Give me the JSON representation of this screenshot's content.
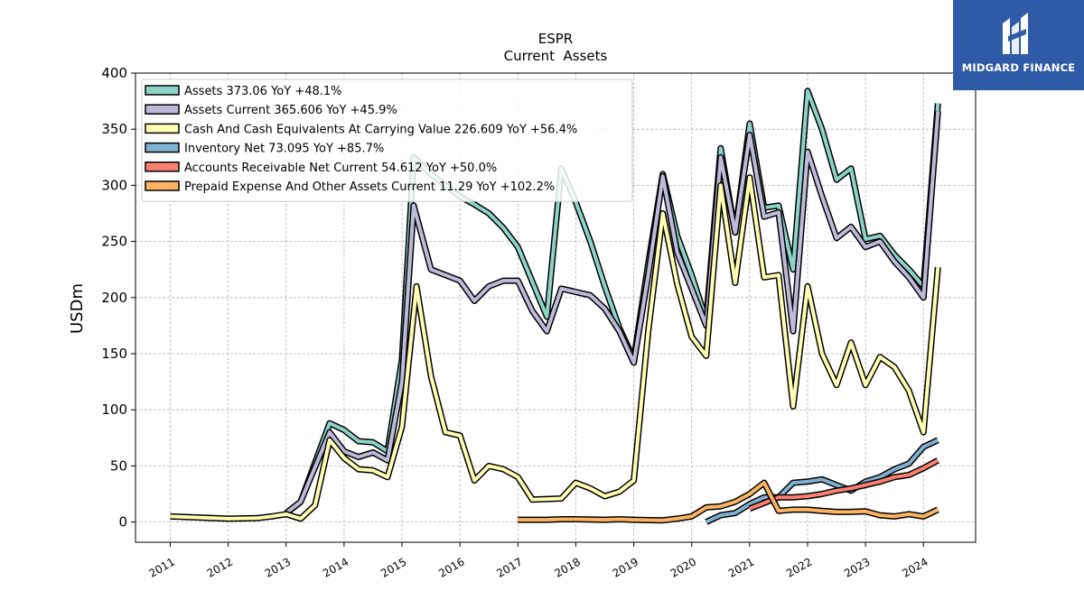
{
  "brand": {
    "name": "MIDGARD FINANCE",
    "bg_color": "#2f5aa8"
  },
  "chart_data": {
    "type": "line",
    "title": "ESPR",
    "subtitle": "Current  Assets",
    "ylabel": "USDm",
    "xlabel": "",
    "ylim": [
      -18,
      400
    ],
    "xlim": [
      2010.4,
      2024.9
    ],
    "yticks": [
      0,
      50,
      100,
      150,
      200,
      250,
      300,
      350,
      400
    ],
    "xticks": [
      "2011",
      "2012",
      "2013",
      "2014",
      "2015",
      "2016",
      "2017",
      "2018",
      "2019",
      "2020",
      "2021",
      "2022",
      "2023",
      "2024"
    ],
    "grid": true,
    "legend_position": "top-left",
    "series": [
      {
        "name": "Assets  373.06 YoY +48.1%",
        "color": "#8dd3c7",
        "points": [
          [
            2013.0,
            8
          ],
          [
            2013.25,
            18
          ],
          [
            2013.75,
            88
          ],
          [
            2014.0,
            82
          ],
          [
            2014.25,
            72
          ],
          [
            2014.5,
            71
          ],
          [
            2014.75,
            63
          ],
          [
            2015.0,
            145
          ],
          [
            2015.2,
            325
          ],
          [
            2015.5,
            310
          ],
          [
            2015.75,
            300
          ],
          [
            2016.0,
            290
          ],
          [
            2016.25,
            283
          ],
          [
            2016.5,
            275
          ],
          [
            2016.75,
            262
          ],
          [
            2017.0,
            245
          ],
          [
            2017.5,
            183
          ],
          [
            2017.75,
            315
          ],
          [
            2018.0,
            285
          ],
          [
            2018.25,
            250
          ],
          [
            2018.5,
            210
          ],
          [
            2018.75,
            173
          ],
          [
            2019.0,
            145
          ],
          [
            2019.25,
            230
          ],
          [
            2019.5,
            310
          ],
          [
            2019.75,
            255
          ],
          [
            2020.0,
            220
          ],
          [
            2020.25,
            180
          ],
          [
            2020.5,
            333
          ],
          [
            2020.75,
            258
          ],
          [
            2021.0,
            355
          ],
          [
            2021.25,
            280
          ],
          [
            2021.5,
            282
          ],
          [
            2021.75,
            225
          ],
          [
            2022.0,
            384
          ],
          [
            2022.25,
            350
          ],
          [
            2022.5,
            305
          ],
          [
            2022.75,
            315
          ],
          [
            2023.0,
            252
          ],
          [
            2023.25,
            255
          ],
          [
            2023.5,
            238
          ],
          [
            2023.75,
            225
          ],
          [
            2024.0,
            210
          ],
          [
            2024.25,
            373
          ]
        ]
      },
      {
        "name": "Assets Current  365.606 YoY +45.9%",
        "color": "#bebada",
        "points": [
          [
            2013.0,
            8
          ],
          [
            2013.25,
            18
          ],
          [
            2013.75,
            80
          ],
          [
            2014.0,
            63
          ],
          [
            2014.25,
            58
          ],
          [
            2014.5,
            62
          ],
          [
            2014.75,
            55
          ],
          [
            2015.0,
            125
          ],
          [
            2015.2,
            282
          ],
          [
            2015.5,
            225
          ],
          [
            2015.75,
            220
          ],
          [
            2016.0,
            215
          ],
          [
            2016.25,
            197
          ],
          [
            2016.5,
            210
          ],
          [
            2016.75,
            215
          ],
          [
            2017.0,
            215
          ],
          [
            2017.25,
            188
          ],
          [
            2017.5,
            170
          ],
          [
            2017.75,
            208
          ],
          [
            2018.0,
            205
          ],
          [
            2018.25,
            202
          ],
          [
            2018.5,
            190
          ],
          [
            2018.75,
            170
          ],
          [
            2019.0,
            142
          ],
          [
            2019.25,
            220
          ],
          [
            2019.5,
            308
          ],
          [
            2019.75,
            240
          ],
          [
            2020.0,
            208
          ],
          [
            2020.25,
            175
          ],
          [
            2020.5,
            325
          ],
          [
            2020.75,
            258
          ],
          [
            2021.0,
            345
          ],
          [
            2021.25,
            272
          ],
          [
            2021.5,
            276
          ],
          [
            2021.75,
            170
          ],
          [
            2022.0,
            330
          ],
          [
            2022.25,
            290
          ],
          [
            2022.5,
            253
          ],
          [
            2022.75,
            263
          ],
          [
            2023.0,
            245
          ],
          [
            2023.25,
            250
          ],
          [
            2023.5,
            232
          ],
          [
            2023.75,
            218
          ],
          [
            2024.0,
            200
          ],
          [
            2024.25,
            366
          ]
        ]
      },
      {
        "name": "Cash And Cash Equivalents At Carrying Value  226.609 YoY +56.4%",
        "color": "#ffffb3",
        "points": [
          [
            2011.0,
            5
          ],
          [
            2011.5,
            4
          ],
          [
            2012.0,
            3
          ],
          [
            2012.5,
            3.5
          ],
          [
            2012.75,
            5
          ],
          [
            2013.0,
            7
          ],
          [
            2013.25,
            3
          ],
          [
            2013.5,
            15
          ],
          [
            2013.75,
            73
          ],
          [
            2014.0,
            57
          ],
          [
            2014.25,
            47
          ],
          [
            2014.5,
            46
          ],
          [
            2014.75,
            40
          ],
          [
            2015.0,
            85
          ],
          [
            2015.25,
            210
          ],
          [
            2015.5,
            130
          ],
          [
            2015.75,
            80
          ],
          [
            2016.0,
            77
          ],
          [
            2016.25,
            37
          ],
          [
            2016.5,
            50
          ],
          [
            2016.75,
            47
          ],
          [
            2017.0,
            40
          ],
          [
            2017.25,
            20
          ],
          [
            2017.75,
            21
          ],
          [
            2018.0,
            35
          ],
          [
            2018.25,
            30
          ],
          [
            2018.5,
            23
          ],
          [
            2018.75,
            27
          ],
          [
            2019.0,
            37
          ],
          [
            2019.25,
            170
          ],
          [
            2019.5,
            275
          ],
          [
            2019.75,
            212
          ],
          [
            2020.0,
            165
          ],
          [
            2020.25,
            148
          ],
          [
            2020.5,
            300
          ],
          [
            2020.75,
            213
          ],
          [
            2021.0,
            307
          ],
          [
            2021.25,
            218
          ],
          [
            2021.5,
            220
          ],
          [
            2021.75,
            103
          ],
          [
            2022.0,
            210
          ],
          [
            2022.25,
            150
          ],
          [
            2022.5,
            122
          ],
          [
            2022.75,
            160
          ],
          [
            2023.0,
            122
          ],
          [
            2023.25,
            147
          ],
          [
            2023.5,
            138
          ],
          [
            2023.75,
            117
          ],
          [
            2024.0,
            80
          ],
          [
            2024.25,
            227
          ]
        ]
      },
      {
        "name": "Inventory Net  73.095 YoY +85.7%",
        "color": "#80b1d3",
        "points": [
          [
            2020.25,
            0
          ],
          [
            2020.5,
            6
          ],
          [
            2020.75,
            8
          ],
          [
            2021.0,
            16
          ],
          [
            2021.25,
            22
          ],
          [
            2021.5,
            22
          ],
          [
            2021.75,
            35
          ],
          [
            2022.0,
            36
          ],
          [
            2022.25,
            38
          ],
          [
            2022.5,
            33
          ],
          [
            2022.75,
            28
          ],
          [
            2023.0,
            36
          ],
          [
            2023.25,
            40
          ],
          [
            2023.5,
            47
          ],
          [
            2023.75,
            52
          ],
          [
            2024.0,
            67
          ],
          [
            2024.25,
            73
          ]
        ]
      },
      {
        "name": "Accounts Receivable Net Current  54.612 YoY +50.0%",
        "color": "#fb8072",
        "points": [
          [
            2021.0,
            12
          ],
          [
            2021.25,
            17
          ],
          [
            2021.5,
            22
          ],
          [
            2021.75,
            22
          ],
          [
            2022.0,
            23
          ],
          [
            2022.25,
            25
          ],
          [
            2022.5,
            28
          ],
          [
            2022.75,
            30
          ],
          [
            2023.0,
            33
          ],
          [
            2023.25,
            36
          ],
          [
            2023.5,
            40
          ],
          [
            2023.75,
            42
          ],
          [
            2024.0,
            48
          ],
          [
            2024.25,
            55
          ]
        ]
      },
      {
        "name": "Prepaid Expense And Other Assets Current  11.29 YoY +102.2%",
        "color": "#fdb462",
        "points": [
          [
            2017.0,
            2
          ],
          [
            2017.5,
            2
          ],
          [
            2017.75,
            2.5
          ],
          [
            2018.0,
            2.5
          ],
          [
            2018.5,
            2
          ],
          [
            2018.75,
            2.5
          ],
          [
            2019.0,
            2
          ],
          [
            2019.5,
            1.5
          ],
          [
            2019.75,
            3
          ],
          [
            2020.0,
            5
          ],
          [
            2020.25,
            13
          ],
          [
            2020.5,
            14
          ],
          [
            2020.75,
            18
          ],
          [
            2021.0,
            25
          ],
          [
            2021.25,
            35
          ],
          [
            2021.5,
            10
          ],
          [
            2021.75,
            11
          ],
          [
            2022.0,
            11
          ],
          [
            2022.25,
            10
          ],
          [
            2022.5,
            9
          ],
          [
            2022.75,
            9
          ],
          [
            2023.0,
            9.5
          ],
          [
            2023.25,
            6
          ],
          [
            2023.5,
            5
          ],
          [
            2023.75,
            7
          ],
          [
            2024.0,
            5
          ],
          [
            2024.25,
            11
          ]
        ]
      }
    ]
  }
}
